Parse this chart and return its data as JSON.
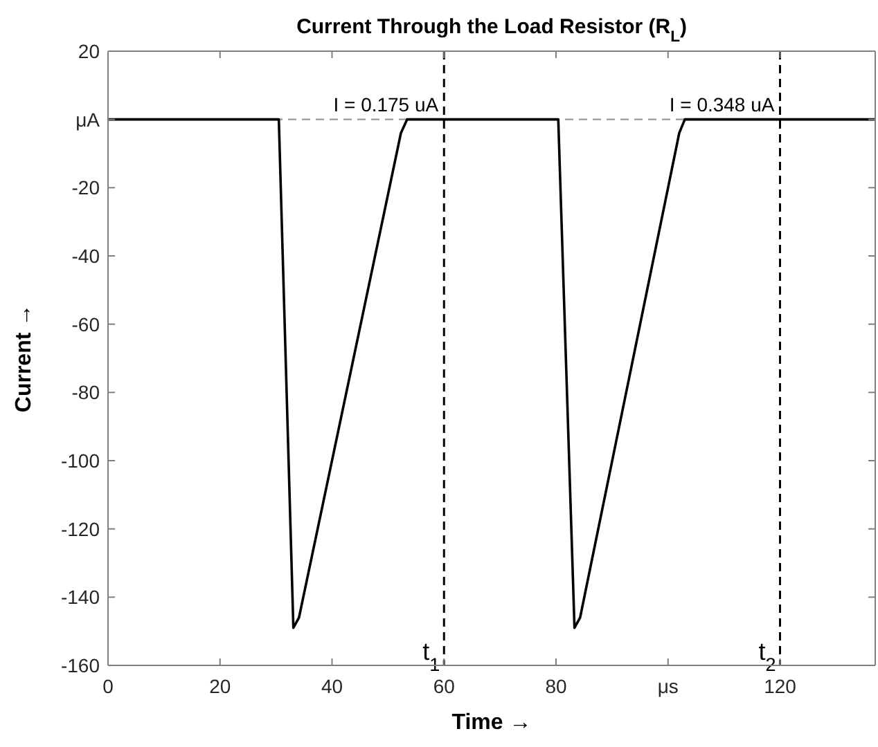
{
  "chart_data": {
    "type": "line",
    "title": "Current Through the Load Resistor (R$_{L}$)",
    "xlabel": "Time →",
    "ylabel": "Current →",
    "series": [
      {
        "color": "#000000",
        "x": [
          0,
          30.5,
          33.1,
          34.1,
          52.3,
          53.4,
          80.4,
          83.3,
          84.3,
          102,
          103,
          137
        ],
        "values": [
          0,
          0,
          -149,
          -146,
          -4,
          0,
          0,
          -149,
          -146,
          -4,
          0,
          0
        ]
      }
    ],
    "xlim": [
      0,
      137
    ],
    "xticks": [
      0,
      20,
      40,
      60,
      80,
      {
        "value": 100,
        "label": "μs"
      },
      120
    ],
    "ylim": [
      -160,
      20
    ],
    "yticks": [
      20,
      {
        "value": 0,
        "label": "μA"
      },
      -20,
      -40,
      -60,
      -80,
      -100,
      -120,
      -140,
      -160
    ],
    "ref_lines": [
      {
        "axis": "y",
        "value": 0,
        "color": "#999999",
        "line_style": "dashed"
      },
      {
        "axis": "x",
        "value": 60,
        "label": "t$_{1}$",
        "color": "#000000",
        "line_style": "dashed"
      },
      {
        "axis": "x",
        "value": 120,
        "label": "t$_{2}$",
        "color": "#000000",
        "line_style": "dashed"
      }
    ],
    "annotations": [
      {
        "text": "I = 0.175 uA",
        "x": 60,
        "y": 0
      },
      {
        "text": "I = 0.348 uA",
        "x": 120,
        "y": 0
      }
    ],
    "grid": false,
    "marker": "none",
    "line_style": "solid"
  }
}
